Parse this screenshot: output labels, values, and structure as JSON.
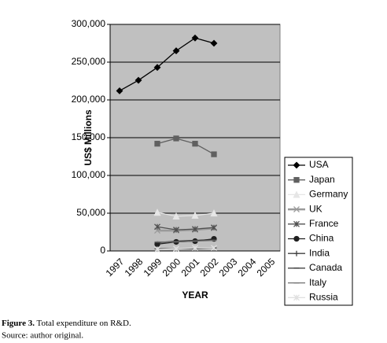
{
  "chart_data": {
    "type": "line",
    "y_label": "US$ Millions",
    "x_label": "YEAR",
    "categories": [
      "1997",
      "1998",
      "1999",
      "2000",
      "2001",
      "2002",
      "2003",
      "2004",
      "2005"
    ],
    "ylim": [
      0,
      300000
    ],
    "yticks": [
      0,
      {
        "value": 50000,
        "label": "50,000"
      },
      {
        "value": 100000,
        "label": "100,000"
      },
      {
        "value": 150000,
        "label": "150,000"
      },
      {
        "value": 200000,
        "label": "200,000"
      },
      {
        "value": 250000,
        "label": "250,000"
      },
      {
        "value": 300000,
        "label": "300,000"
      }
    ],
    "grid": true,
    "background": "#c0c0c0",
    "legend": "right",
    "series": [
      {
        "name": "USA",
        "color": "#000000",
        "marker": "diamond",
        "values": [
          212000,
          226000,
          243000,
          265000,
          282000,
          275000,
          null,
          null,
          null
        ]
      },
      {
        "name": "Japan",
        "color": "#606060",
        "marker": "square",
        "values": [
          null,
          null,
          142000,
          149000,
          142000,
          128000,
          null,
          null,
          null
        ]
      },
      {
        "name": "Germany",
        "color": "#e6e6e6",
        "marker": "triangle",
        "values": [
          null,
          null,
          51000,
          46000,
          47000,
          50000,
          null,
          null,
          null
        ]
      },
      {
        "name": "UK",
        "color": "#9a9a9a",
        "marker": "x",
        "values": [
          null,
          null,
          27000,
          27000,
          28000,
          30000,
          null,
          null,
          null
        ]
      },
      {
        "name": "France",
        "color": "#505050",
        "marker": "star",
        "values": [
          null,
          null,
          32000,
          28000,
          29000,
          31000,
          null,
          null,
          null
        ]
      },
      {
        "name": "China",
        "color": "#202020",
        "marker": "circle",
        "values": [
          null,
          null,
          9000,
          12000,
          13000,
          16000,
          null,
          null,
          null
        ]
      },
      {
        "name": "India",
        "color": "#404040",
        "marker": "plus",
        "values": [
          null,
          null,
          3000,
          3000,
          3000,
          4000,
          null,
          null,
          null
        ]
      },
      {
        "name": "Canada",
        "color": "#303030",
        "marker": "dash",
        "values": [
          null,
          null,
          11000,
          13000,
          14000,
          15000,
          null,
          null,
          null
        ]
      },
      {
        "name": "Italy",
        "color": "#707070",
        "marker": "dash",
        "values": [
          null,
          null,
          12000,
          12000,
          13000,
          14000,
          null,
          null,
          null
        ]
      },
      {
        "name": "Russia",
        "color": "#e0e0e0",
        "marker": "star",
        "values": [
          null,
          null,
          2000,
          3000,
          4000,
          4000,
          null,
          null,
          null
        ]
      }
    ]
  },
  "caption": {
    "label": "Figure 3.",
    "text": "Total expenditure on R&D.",
    "source": "Source: author original."
  }
}
